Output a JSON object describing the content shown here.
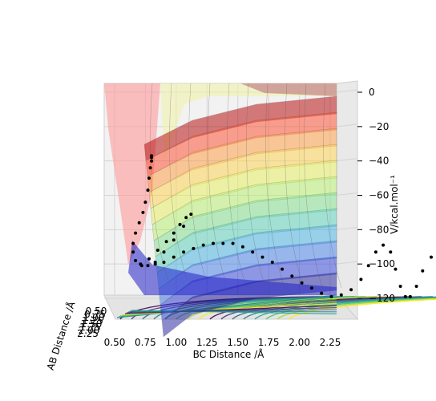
{
  "chart_data": {
    "type": "surface3d",
    "xlabel": "BC Distance /Å",
    "ylabel": "AB Distance /Å",
    "zlabel": "V/kcal.mol⁻¹",
    "x_ticks": [
      "0.50",
      "0.75",
      "1.00",
      "1.25",
      "1.50",
      "1.75",
      "2.00",
      "2.25"
    ],
    "y_ticks": [
      "0.50",
      "0.75",
      "1.00",
      "1.25",
      "1.50",
      "1.75",
      "2.00",
      "2.25"
    ],
    "z_ticks": [
      "0",
      "−20",
      "−40",
      "−60",
      "−80",
      "−100",
      "−120"
    ],
    "xlim": [
      0.35,
      2.45
    ],
    "zlim": [
      -128,
      5
    ],
    "colormap": "jet surface, viridis contours",
    "grid": true,
    "trajectory": {
      "color": "#000000",
      "points": [
        [
          0.8,
          -37
        ],
        [
          0.8,
          -38
        ],
        [
          0.8,
          -40
        ],
        [
          0.79,
          -44
        ],
        [
          0.78,
          -50
        ],
        [
          0.77,
          -57
        ],
        [
          0.75,
          -64
        ],
        [
          0.73,
          -70
        ],
        [
          0.7,
          -76
        ],
        [
          0.67,
          -82
        ],
        [
          0.65,
          -88
        ],
        [
          0.65,
          -93
        ],
        [
          0.67,
          -98
        ],
        [
          0.71,
          -100
        ],
        [
          0.77,
          -101
        ],
        [
          0.83,
          -100
        ],
        [
          0.9,
          -99
        ],
        [
          0.98,
          -96
        ],
        [
          1.06,
          -93
        ],
        [
          1.14,
          -91
        ],
        [
          1.22,
          -89
        ],
        [
          1.3,
          -88
        ],
        [
          1.38,
          -88
        ],
        [
          1.46,
          -88
        ],
        [
          1.54,
          -90
        ],
        [
          1.62,
          -93
        ],
        [
          1.7,
          -96
        ],
        [
          1.78,
          -99
        ],
        [
          1.86,
          -103
        ],
        [
          1.94,
          -107
        ],
        [
          2.02,
          -111
        ],
        [
          2.1,
          -114
        ],
        [
          2.18,
          -117
        ],
        [
          2.26,
          -119
        ],
        [
          2.34,
          -118
        ],
        [
          2.42,
          -115
        ],
        [
          2.5,
          -109
        ],
        [
          2.56,
          -101
        ],
        [
          2.62,
          -93
        ],
        [
          2.68,
          -89
        ],
        [
          2.74,
          -93
        ],
        [
          2.78,
          -103
        ],
        [
          2.82,
          -113
        ],
        [
          2.86,
          -119
        ],
        [
          2.9,
          -119
        ],
        [
          2.95,
          -113
        ],
        [
          3.0,
          -104
        ],
        [
          3.07,
          -96
        ],
        [
          3.15,
          -91
        ],
        [
          3.25,
          -88
        ],
        [
          3.35,
          -86
        ],
        [
          3.45,
          -86
        ]
      ],
      "return_branch": [
        [
          0.72,
          -101
        ],
        [
          0.78,
          -97
        ],
        [
          0.85,
          -92
        ],
        [
          0.92,
          -87
        ],
        [
          0.98,
          -82
        ],
        [
          1.03,
          -77
        ],
        [
          1.08,
          -73
        ],
        [
          1.12,
          -71
        ],
        [
          1.06,
          -78
        ],
        [
          0.98,
          -86
        ],
        [
          0.9,
          -93
        ],
        [
          0.83,
          -99
        ]
      ]
    }
  }
}
